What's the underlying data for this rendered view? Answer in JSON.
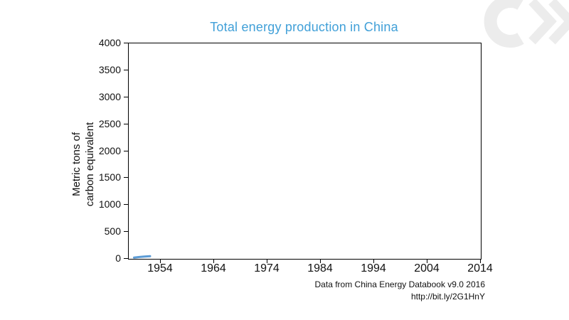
{
  "title": "Total energy production in China",
  "colors": {
    "title": "#41a0d8",
    "line": "#5b9bd5",
    "logo": "#ececec",
    "axis_text": "#111111"
  },
  "attribution": {
    "line1": "Data from China Energy Databook v9.0 2016",
    "line2": "http://bit.ly/2G1HnY"
  },
  "chart_data": {
    "type": "line",
    "title": "Total energy production in China",
    "xlabel": "",
    "ylabel": "Metric tons of carbon equivalent",
    "ylabel_lines": [
      "Metric tons of",
      "carbon equivalent"
    ],
    "series": [
      {
        "name": "Total energy production",
        "x": [
          1949,
          1950,
          1951,
          1952
        ],
        "values": [
          24,
          34,
          42,
          49
        ]
      }
    ],
    "xlim": [
      1948,
      2014
    ],
    "ylim": [
      0,
      4000
    ],
    "x_ticks": [
      1954,
      1964,
      1974,
      1984,
      1994,
      2004,
      2014
    ],
    "y_ticks": [
      0,
      500,
      1000,
      1500,
      2000,
      2500,
      3000,
      3500,
      4000
    ],
    "grid": false,
    "legend": "none"
  }
}
